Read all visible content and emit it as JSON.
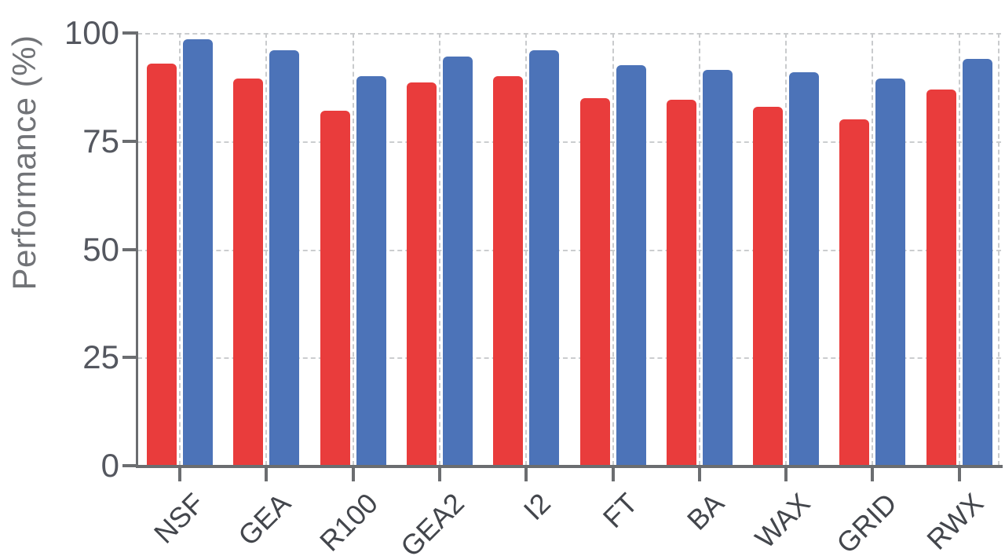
{
  "chart_data": {
    "type": "bar",
    "title": "",
    "ylabel": "Performance (%)",
    "xlabel": "",
    "categories": [
      "NSF",
      "GEA",
      "R100",
      "GEA2",
      "I2",
      "FT",
      "BA",
      "WAX",
      "GRID",
      "RWX"
    ],
    "series": [
      {
        "name": "red",
        "color": "#e93c3c",
        "values": [
          93,
          89.5,
          82,
          88.5,
          90,
          85,
          84.5,
          83,
          80,
          87
        ]
      },
      {
        "name": "blue",
        "color": "#4c73b8",
        "values": [
          98.5,
          96,
          90,
          94.5,
          96,
          92.5,
          91.5,
          91,
          89.5,
          94
        ]
      }
    ],
    "ylim": [
      0,
      100
    ],
    "yticks": [
      0,
      25,
      50,
      75,
      100
    ],
    "grid": "dashed, horizontal at yticks and vertical at each category center plus right edge",
    "legend_position": "none"
  },
  "colors": {
    "background": "#ffffff",
    "grid": "#cbcdcf",
    "axis": "#6b6d70",
    "y_tick_text": "#54575f",
    "x_tick_text": "#43464c",
    "y_label_text": "#717377",
    "red_bar": "#e93c3c",
    "blue_bar": "#4c73b8"
  }
}
